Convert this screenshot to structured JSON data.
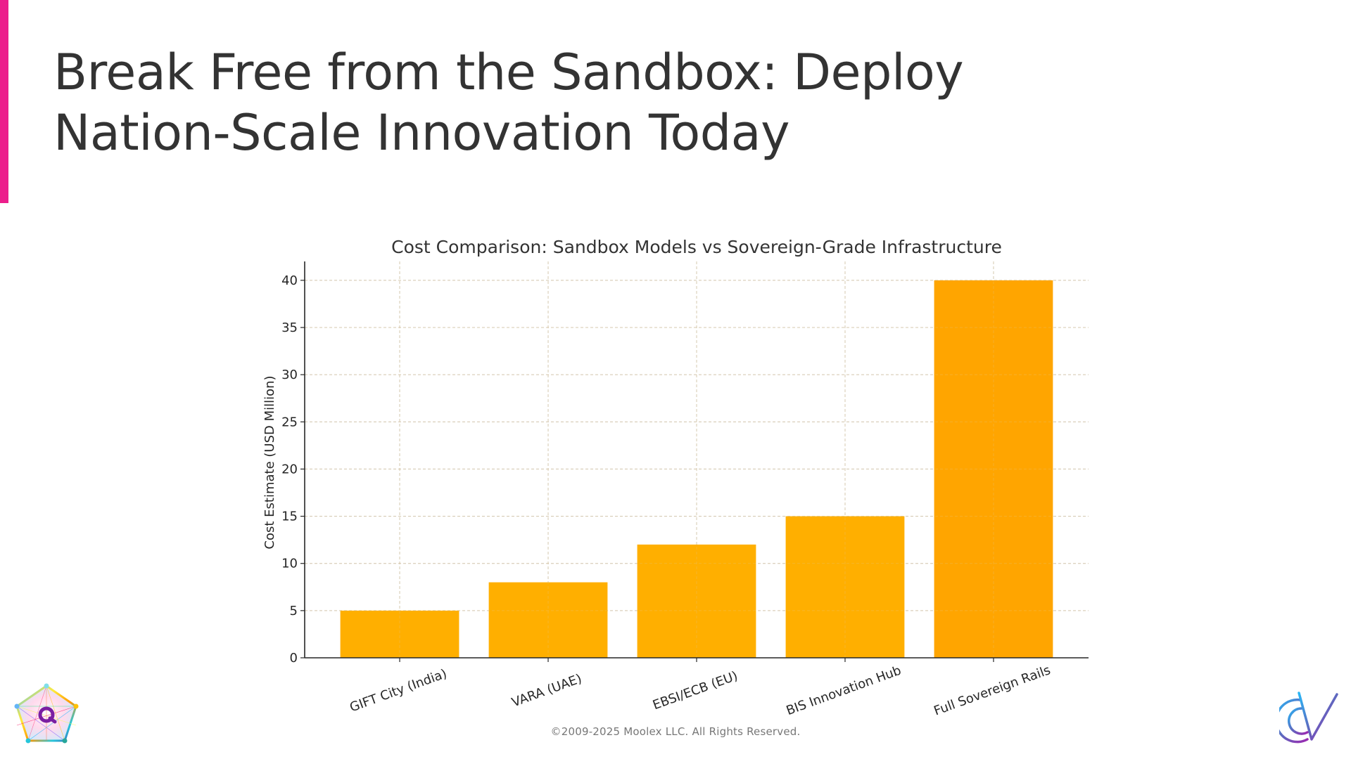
{
  "slide": {
    "title_lines": [
      "Break Free from the Sandbox: Deploy",
      "Nation-Scale Innovation Today"
    ],
    "footer": "©2009-2025 Moolex LLC. All Rights Reserved.",
    "accent_color": "#EC1E8C",
    "logos": {
      "left": "pentagon-q-logo",
      "right": "cv-monogram-logo"
    }
  },
  "chart_data": {
    "type": "bar",
    "title": "Cost Comparison: Sandbox Models vs Sovereign-Grade Infrastructure",
    "xlabel": "",
    "ylabel": "Cost Estimate (USD Million)",
    "categories": [
      "GIFT City (India)",
      "VARA (UAE)",
      "EBSI/ECB (EU)",
      "BIS Innovation Hub",
      "Full Sovereign Rails"
    ],
    "values": [
      5,
      8,
      12,
      15,
      40
    ],
    "bar_colors": [
      "#FFAF00",
      "#FFAF00",
      "#FFAF00",
      "#FFAF00",
      "#FFA500"
    ],
    "ylim": [
      0,
      42
    ],
    "yticks": [
      0,
      5,
      10,
      15,
      20,
      25,
      30,
      35,
      40
    ],
    "grid": true,
    "legend": "none",
    "xtick_rotation_deg": 20
  }
}
